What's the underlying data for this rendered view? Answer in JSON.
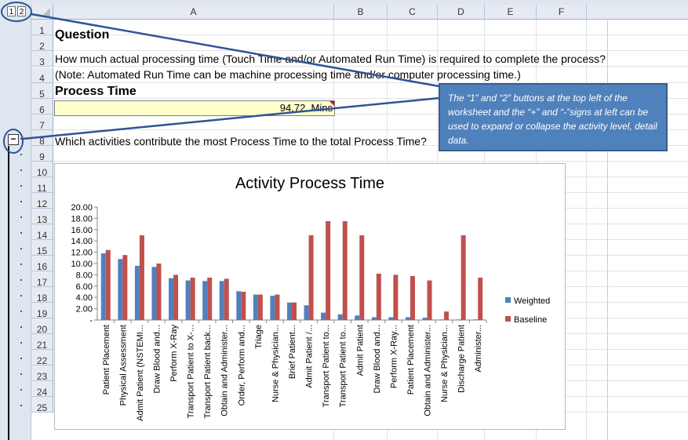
{
  "outline_levels": [
    "1",
    "2"
  ],
  "collapse_button": "−",
  "columns": [
    "A",
    "B",
    "C",
    "D",
    "E",
    "F"
  ],
  "rows": [
    "1",
    "2",
    "3",
    "4",
    "5",
    "6",
    "7",
    "8",
    "9",
    "10",
    "11",
    "12",
    "13",
    "14",
    "15",
    "16",
    "17",
    "18",
    "19",
    "20",
    "21",
    "22",
    "23",
    "24",
    "25"
  ],
  "cells": {
    "question_heading": "Question",
    "question_text": "How much actual processing time (Touch Time and/or Automated Run Time) is required to complete the process?",
    "note_text": "(Note: Automated Run Time can be machine processing time and/or computer processing time.)",
    "process_time_heading": "Process Time",
    "process_time_value": "94.72",
    "process_time_unit": "Mins",
    "activities_question": "Which activities contribute the most Process Time to the total Process Time?"
  },
  "callout": {
    "text": "The “1” and “2” buttons at the top left of the worksheet and the “+” and “-”signs at left can be used to expand or collapse the activity level, detail data."
  },
  "colors": {
    "weighted": "#4f81bd",
    "baseline": "#c0504d",
    "callout_fill": "#4f81bd",
    "input_cell": "#ffffcc"
  },
  "chart_data": {
    "type": "bar",
    "title": "Activity Process Time",
    "xlabel": "",
    "ylabel": "",
    "ylim": [
      0,
      20
    ],
    "ytick_labels": [
      "-",
      "2.00",
      "4.00",
      "6.00",
      "8.00",
      "10.00",
      "12.00",
      "14.00",
      "16.00",
      "18.00",
      "20.00"
    ],
    "categories": [
      "Patient Placement",
      "Physical Assessment",
      "Admit Patient (NSTEMI...",
      "Draw  Blood and...",
      "Perform X-Ray",
      "Transport Patient to X-...",
      "Transport Patient back...",
      "Obtain and Administer...",
      "Order, Perform and...",
      "Triage",
      "Nurse & Physician...",
      "Brief Patient...",
      "Admit Patient /...",
      "Transport Patient to...",
      "Transport Patient to...",
      "Admit Patient",
      "Draw  Blood and...",
      "Perform X-Ray...",
      "Patient Placement",
      "Obtain and Administer...",
      "Nurse & Physician...",
      "Discharge Patient",
      "Administer..."
    ],
    "series": [
      {
        "name": "Weighted",
        "values": [
          11.8,
          10.8,
          9.6,
          9.4,
          7.4,
          7.0,
          6.9,
          6.9,
          5.1,
          4.5,
          4.3,
          3.1,
          2.6,
          1.3,
          1.0,
          0.8,
          0.5,
          0.5,
          0.5,
          0.4,
          0.1,
          0.1,
          0.1
        ]
      },
      {
        "name": "Baseline",
        "values": [
          12.4,
          11.5,
          15.0,
          10.0,
          8.0,
          7.5,
          7.5,
          7.3,
          5.0,
          4.5,
          4.5,
          3.1,
          15.0,
          17.5,
          17.5,
          15.0,
          8.2,
          8.0,
          7.8,
          7.0,
          1.5,
          15.0,
          7.5
        ]
      }
    ],
    "legend_position": "right",
    "grid": false
  }
}
